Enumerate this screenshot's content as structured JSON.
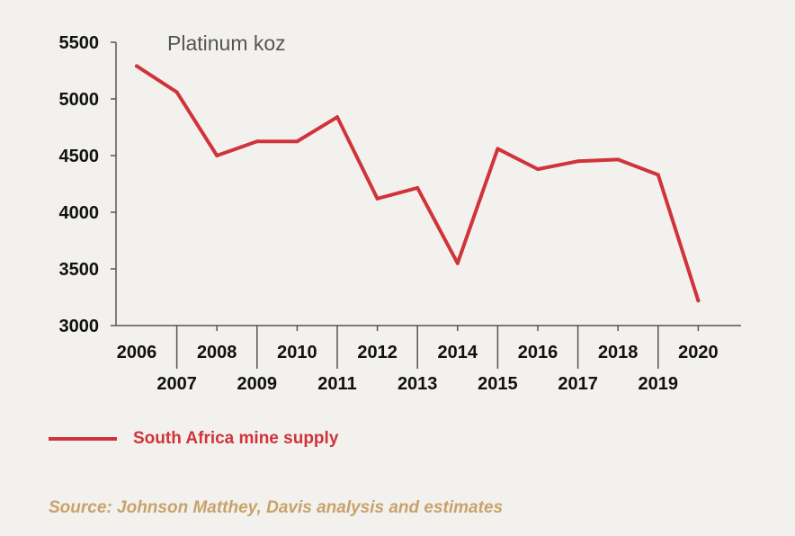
{
  "chart_data": {
    "type": "line",
    "ylabel": "Platinum koz",
    "ylim": [
      3000,
      5500
    ],
    "yticks": [
      "5500",
      "5000",
      "4500",
      "4000",
      "3500",
      "3000"
    ],
    "categories": [
      "2006",
      "2007",
      "2008",
      "2009",
      "2010",
      "2011",
      "2012",
      "2013",
      "2014",
      "2015",
      "2016",
      "2017",
      "2018",
      "2019",
      "2020"
    ],
    "series": [
      {
        "name": "South Africa mine supply",
        "color": "#d0343a",
        "values": [
          5290,
          5060,
          4500,
          4625,
          4625,
          4840,
          4120,
          4215,
          3550,
          4560,
          4380,
          4450,
          4465,
          4330,
          3220
        ]
      }
    ],
    "source": "Source: Johnson Matthey, Davis analysis and estimates"
  }
}
